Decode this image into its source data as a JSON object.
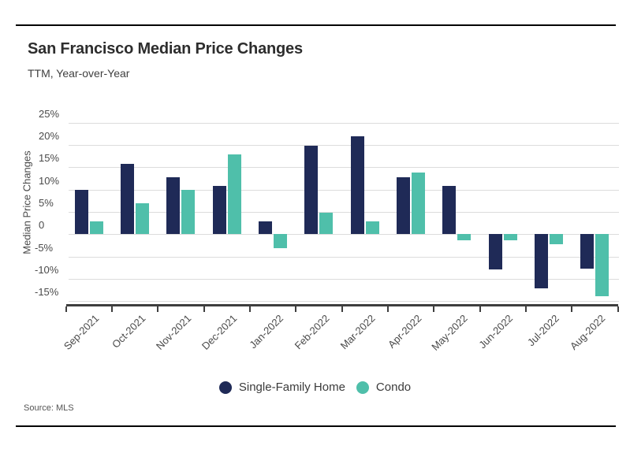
{
  "header": {
    "title": "San Francisco Median Price Changes",
    "subtitle": "TTM, Year-over-Year"
  },
  "footer": {
    "source": "Source: MLS"
  },
  "legend": {
    "items": [
      {
        "label": "Single-Family Home",
        "color": "#1f2a57"
      },
      {
        "label": "Condo",
        "color": "#4fbfaa"
      }
    ]
  },
  "chart_data": {
    "type": "bar",
    "title": "San Francisco Median Price Changes",
    "subtitle": "TTM, Year-over-Year",
    "source": "MLS",
    "unit": "%",
    "grid": true,
    "legend_position": "bottom",
    "xlabel": "",
    "ylabel": "Median Price Changes",
    "ylim": [
      -17.5,
      27.5
    ],
    "yticks": [
      25,
      20,
      15,
      10,
      5,
      0,
      -5,
      -10,
      -15
    ],
    "ytick_labels": [
      "25%",
      "20%",
      "15%",
      "10%",
      "5%",
      "0",
      "-5%",
      "-10%",
      "-15%"
    ],
    "categories": [
      "Sep-2021",
      "Oct-2021",
      "Nov-2021",
      "Dec-2021",
      "Jan-2022",
      "Feb-2022",
      "Mar-2022",
      "Apr-2022",
      "May-2022",
      "Jun-2022",
      "Jul-2022",
      "Aug-2022"
    ],
    "series": [
      {
        "name": "Single-Family Home",
        "color": "#1f2a57",
        "values": [
          9.9,
          15.7,
          12.8,
          10.9,
          2.9,
          19.8,
          21.9,
          12.8,
          10.8,
          -7.9,
          -12.2,
          -7.8
        ]
      },
      {
        "name": "Condo",
        "color": "#4fbfaa",
        "values": [
          2.8,
          6.9,
          9.9,
          17.8,
          -3.1,
          4.9,
          2.8,
          13.8,
          -1.3,
          -1.3,
          -2.2,
          -13.9
        ]
      }
    ]
  }
}
